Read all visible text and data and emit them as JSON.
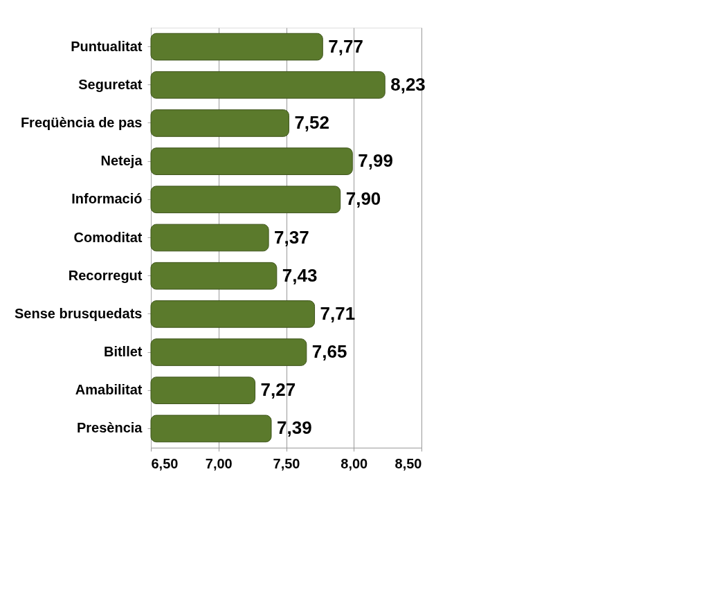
{
  "chart_data": {
    "type": "bar",
    "orientation": "horizontal",
    "categories": [
      "Puntualitat",
      "Seguretat",
      "Freqüència de pas",
      "Neteja",
      "Informació",
      "Comoditat",
      "Recorregut",
      "Sense brusquedats",
      "Bitllet",
      "Amabilitat",
      "Presència"
    ],
    "values": [
      7.77,
      8.23,
      7.52,
      7.99,
      7.9,
      7.37,
      7.43,
      7.71,
      7.65,
      7.27,
      7.39
    ],
    "value_labels": [
      "7,77",
      "8,23",
      "7,52",
      "7,99",
      "7,90",
      "7,37",
      "7,43",
      "7,71",
      "7,65",
      "7,27",
      "7,39"
    ],
    "color": "#5b7a2c",
    "xlim": [
      6.5,
      8.5
    ],
    "xticks": [
      {
        "value": 6.5,
        "label": "6,50"
      },
      {
        "value": 7.0,
        "label": "7,00"
      },
      {
        "value": 7.5,
        "label": "7,50"
      },
      {
        "value": 8.0,
        "label": "8,00"
      },
      {
        "value": 8.5,
        "label": "8,50"
      }
    ],
    "grid": "x"
  }
}
